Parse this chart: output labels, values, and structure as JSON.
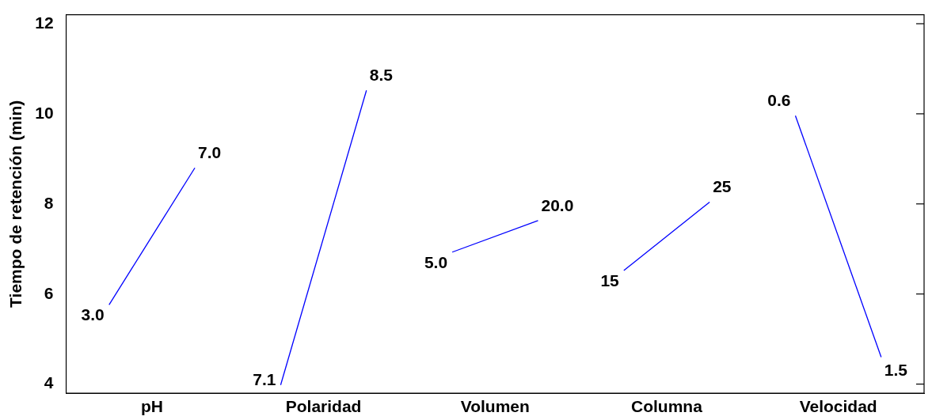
{
  "chart_data": {
    "type": "line",
    "ylabel": "Tiempo de retención (min)",
    "categories": [
      "3.0",
      "7.0",
      "7.1",
      "8.5",
      "5.0",
      "20.0",
      "15",
      "25",
      "0.6",
      "1.5"
    ],
    "annotations": [
      "pH",
      "Polaridad",
      "Volumen",
      "Columna",
      "Velocidad"
    ],
    "ylim": [
      3.8,
      12.2
    ],
    "yticks": [
      4,
      6,
      8,
      10,
      12
    ],
    "grid": false,
    "legend": false,
    "marker": "none",
    "line_style": "solid",
    "series": [
      {
        "color": "#0000ff",
        "values": [
          5.76,
          8.8,
          null,
          null,
          null,
          null,
          null,
          null,
          null,
          null
        ]
      },
      {
        "color": "#0000ff",
        "values": [
          null,
          null,
          3.98,
          10.52,
          null,
          null,
          null,
          null,
          null,
          null
        ]
      },
      {
        "color": "#0000ff",
        "values": [
          null,
          null,
          null,
          null,
          6.93,
          7.63,
          null,
          null,
          null,
          null
        ]
      },
      {
        "color": "#0000ff",
        "values": [
          null,
          null,
          null,
          null,
          null,
          null,
          6.52,
          8.04,
          null,
          null
        ]
      },
      {
        "color": "#0000ff",
        "values": [
          null,
          null,
          null,
          null,
          null,
          null,
          null,
          null,
          9.96,
          4.6
        ]
      }
    ]
  }
}
